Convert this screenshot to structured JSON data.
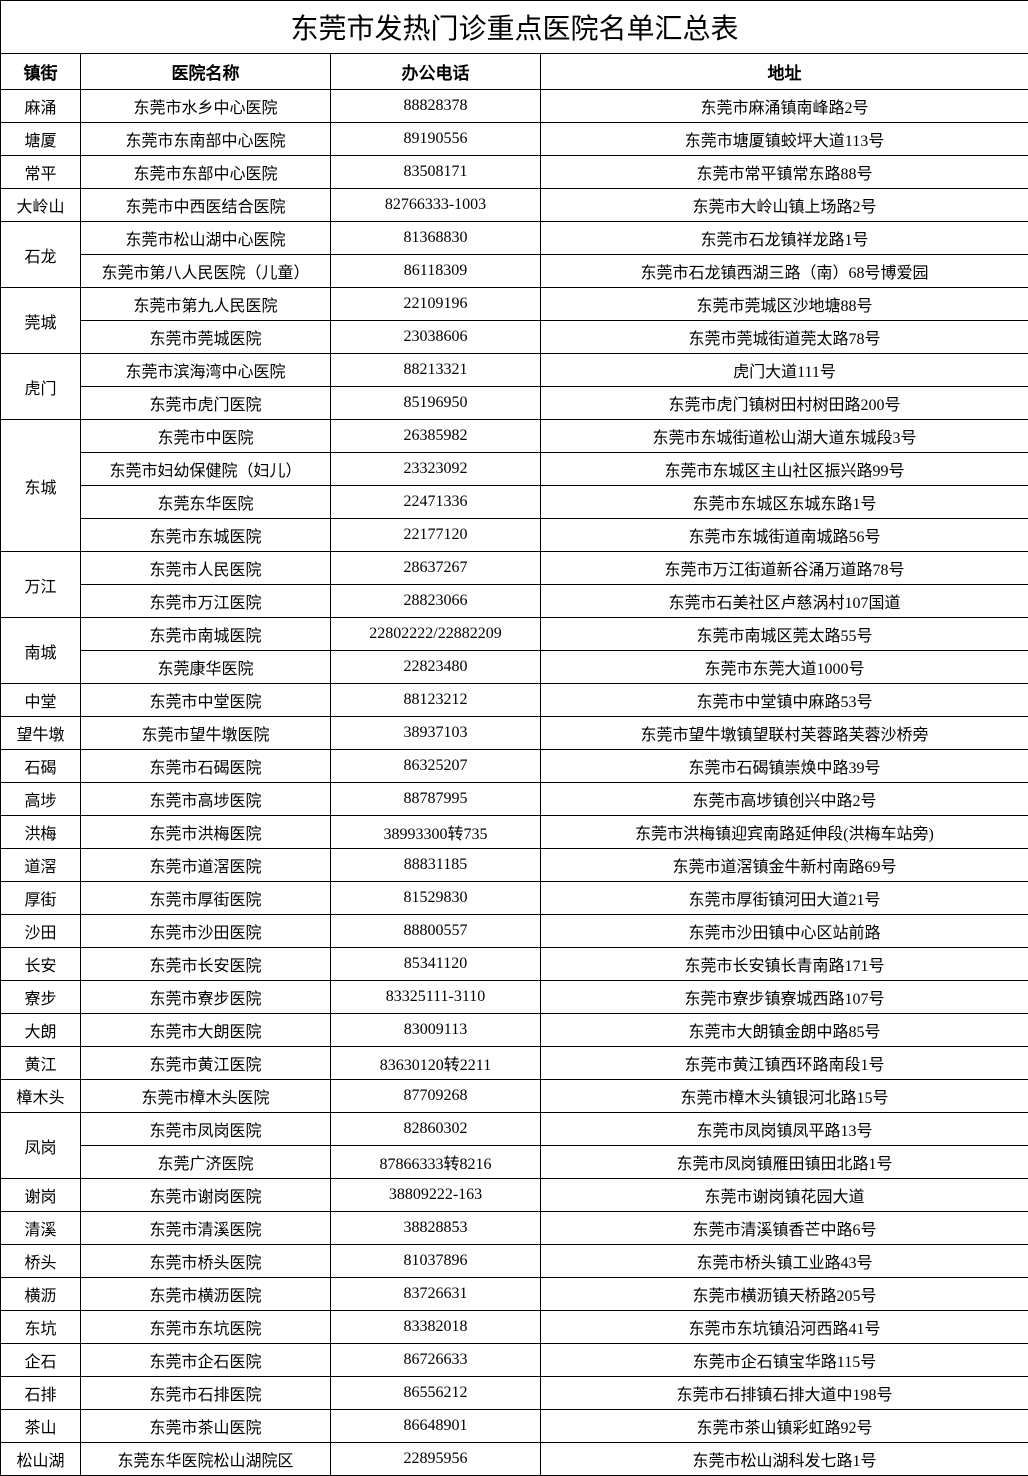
{
  "title": "东莞市发热门诊重点医院名单汇总表",
  "columns": {
    "town": "镇街",
    "hospital": "医院名称",
    "phone": "办公电话",
    "address": "地址"
  },
  "column_widths": {
    "town": 80,
    "hospital": 250,
    "phone": 210,
    "address": 488
  },
  "styling": {
    "title_fontsize": 28,
    "header_fontsize": 17,
    "cell_fontsize": 16,
    "border_color": "#000000",
    "background_color": "#ffffff",
    "text_color": "#000000"
  },
  "groups": [
    {
      "town": "麻涌",
      "rows": [
        {
          "hospital": "东莞市水乡中心医院",
          "phone": "88828378",
          "address": "东莞市麻涌镇南峰路2号"
        }
      ]
    },
    {
      "town": "塘厦",
      "rows": [
        {
          "hospital": "东莞市东南部中心医院",
          "phone": "89190556",
          "address": "东莞市塘厦镇蛟坪大道113号"
        }
      ]
    },
    {
      "town": "常平",
      "rows": [
        {
          "hospital": "东莞市东部中心医院",
          "phone": "83508171",
          "address": "东莞市常平镇常东路88号"
        }
      ]
    },
    {
      "town": "大岭山",
      "rows": [
        {
          "hospital": "东莞市中西医结合医院",
          "phone": "82766333-1003",
          "address": "东莞市大岭山镇上场路2号"
        }
      ]
    },
    {
      "town": "石龙",
      "rows": [
        {
          "hospital": "东莞市松山湖中心医院",
          "phone": "81368830",
          "address": "东莞市石龙镇祥龙路1号"
        },
        {
          "hospital": "东莞市第八人民医院（儿童）",
          "phone": "86118309",
          "address": "东莞市石龙镇西湖三路（南）68号博爱园"
        }
      ]
    },
    {
      "town": "莞城",
      "rows": [
        {
          "hospital": "东莞市第九人民医院",
          "phone": "22109196",
          "address": "东莞市莞城区沙地塘88号"
        },
        {
          "hospital": "东莞市莞城医院",
          "phone": "23038606",
          "address": "东莞市莞城街道莞太路78号"
        }
      ]
    },
    {
      "town": "虎门",
      "rows": [
        {
          "hospital": "东莞市滨海湾中心医院",
          "phone": "88213321",
          "address": "虎门大道111号"
        },
        {
          "hospital": "东莞市虎门医院",
          "phone": "85196950",
          "address": "东莞市虎门镇树田村树田路200号"
        }
      ]
    },
    {
      "town": "东城",
      "rows": [
        {
          "hospital": "东莞市中医院",
          "phone": "26385982",
          "address": "东莞市东城街道松山湖大道东城段3号"
        },
        {
          "hospital": "东莞市妇幼保健院（妇儿）",
          "phone": "23323092",
          "address": "东莞市东城区主山社区振兴路99号"
        },
        {
          "hospital": "东莞东华医院",
          "phone": "22471336",
          "address": "东莞市东城区东城东路1号"
        },
        {
          "hospital": "东莞市东城医院",
          "phone": "22177120",
          "address": "东莞市东城街道南城路56号"
        }
      ]
    },
    {
      "town": "万江",
      "rows": [
        {
          "hospital": "东莞市人民医院",
          "phone": "28637267",
          "address": "东莞市万江街道新谷涌万道路78号"
        },
        {
          "hospital": "东莞市万江医院",
          "phone": "28823066",
          "address": "东莞市石美社区卢慈涡村107国道"
        }
      ]
    },
    {
      "town": "南城",
      "rows": [
        {
          "hospital": "东莞市南城医院",
          "phone": "22802222/22882209",
          "address": "东莞市南城区莞太路55号"
        },
        {
          "hospital": "东莞康华医院",
          "phone": "22823480",
          "address": "东莞市东莞大道1000号"
        }
      ]
    },
    {
      "town": "中堂",
      "rows": [
        {
          "hospital": "东莞市中堂医院",
          "phone": "88123212",
          "address": "东莞市中堂镇中麻路53号"
        }
      ]
    },
    {
      "town": "望牛墩",
      "rows": [
        {
          "hospital": "东莞市望牛墩医院",
          "phone": "38937103",
          "address": "东莞市望牛墩镇望联村芙蓉路芙蓉沙桥旁"
        }
      ]
    },
    {
      "town": "石碣",
      "rows": [
        {
          "hospital": "东莞市石碣医院",
          "phone": "86325207",
          "address": "东莞市石碣镇崇焕中路39号"
        }
      ]
    },
    {
      "town": "高埗",
      "rows": [
        {
          "hospital": "东莞市高埗医院",
          "phone": "88787995",
          "address": "东莞市高埗镇创兴中路2号"
        }
      ]
    },
    {
      "town": "洪梅",
      "rows": [
        {
          "hospital": "东莞市洪梅医院",
          "phone": "38993300转735",
          "address": "东莞市洪梅镇迎宾南路延伸段(洪梅车站旁)"
        }
      ]
    },
    {
      "town": "道滘",
      "rows": [
        {
          "hospital": "东莞市道滘医院",
          "phone": "88831185",
          "address": "东莞市道滘镇金牛新村南路69号"
        }
      ]
    },
    {
      "town": "厚街",
      "rows": [
        {
          "hospital": "东莞市厚街医院",
          "phone": "81529830",
          "address": "东莞市厚街镇河田大道21号"
        }
      ]
    },
    {
      "town": "沙田",
      "rows": [
        {
          "hospital": "东莞市沙田医院",
          "phone": "88800557",
          "address": "东莞市沙田镇中心区站前路"
        }
      ]
    },
    {
      "town": "长安",
      "rows": [
        {
          "hospital": "东莞市长安医院",
          "phone": "85341120",
          "address": "东莞市长安镇长青南路171号"
        }
      ]
    },
    {
      "town": "寮步",
      "rows": [
        {
          "hospital": "东莞市寮步医院",
          "phone": "83325111-3110",
          "address": "东莞市寮步镇寮城西路107号"
        }
      ]
    },
    {
      "town": "大朗",
      "rows": [
        {
          "hospital": "东莞市大朗医院",
          "phone": "83009113",
          "address": "东莞市大朗镇金朗中路85号"
        }
      ]
    },
    {
      "town": "黄江",
      "rows": [
        {
          "hospital": "东莞市黄江医院",
          "phone": "83630120转2211",
          "address": "东莞市黄江镇西环路南段1号"
        }
      ]
    },
    {
      "town": "樟木头",
      "rows": [
        {
          "hospital": "东莞市樟木头医院",
          "phone": "87709268",
          "address": "东莞市樟木头镇银河北路15号"
        }
      ]
    },
    {
      "town": "凤岗",
      "rows": [
        {
          "hospital": "东莞市凤岗医院",
          "phone": "82860302",
          "address": "东莞市凤岗镇凤平路13号"
        },
        {
          "hospital": "东莞广济医院",
          "phone": "87866333转8216",
          "address": "东莞市凤岗镇雁田镇田北路1号"
        }
      ]
    },
    {
      "town": "谢岗",
      "rows": [
        {
          "hospital": "东莞市谢岗医院",
          "phone": "38809222-163",
          "address": "东莞市谢岗镇花园大道"
        }
      ]
    },
    {
      "town": "清溪",
      "rows": [
        {
          "hospital": "东莞市清溪医院",
          "phone": "38828853",
          "address": "东莞市清溪镇香芒中路6号"
        }
      ]
    },
    {
      "town": "桥头",
      "rows": [
        {
          "hospital": "东莞市桥头医院",
          "phone": "81037896",
          "address": "东莞市桥头镇工业路43号"
        }
      ]
    },
    {
      "town": "横沥",
      "rows": [
        {
          "hospital": "东莞市横沥医院",
          "phone": "83726631",
          "address": "东莞市横沥镇天桥路205号"
        }
      ]
    },
    {
      "town": "东坑",
      "rows": [
        {
          "hospital": "东莞市东坑医院",
          "phone": "83382018",
          "address": "东莞市东坑镇沿河西路41号"
        }
      ]
    },
    {
      "town": "企石",
      "rows": [
        {
          "hospital": "东莞市企石医院",
          "phone": "86726633",
          "address": "东莞市企石镇宝华路115号"
        }
      ]
    },
    {
      "town": "石排",
      "rows": [
        {
          "hospital": "东莞市石排医院",
          "phone": "86556212",
          "address": "东莞市石排镇石排大道中198号"
        }
      ]
    },
    {
      "town": "茶山",
      "rows": [
        {
          "hospital": "东莞市茶山医院",
          "phone": "86648901",
          "address": "东莞市茶山镇彩虹路92号"
        }
      ]
    },
    {
      "town": "松山湖",
      "rows": [
        {
          "hospital": "东莞东华医院松山湖院区",
          "phone": "22895956",
          "address": "东莞市松山湖科发七路1号"
        }
      ]
    }
  ]
}
